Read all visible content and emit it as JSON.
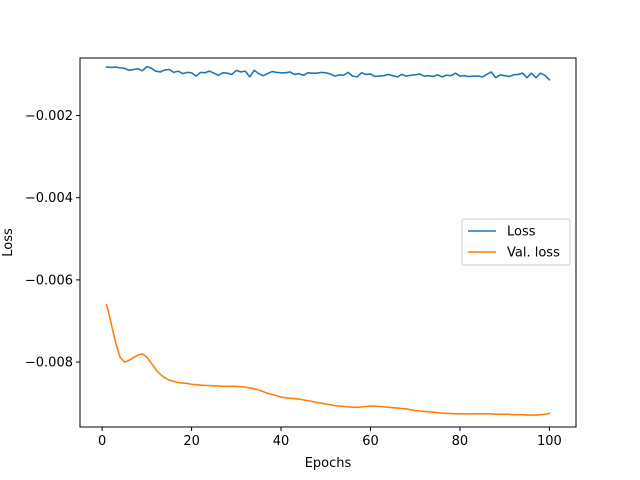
{
  "chart_data": {
    "type": "line",
    "title": "",
    "xlabel": "Epochs",
    "ylabel": "Loss",
    "xlim": [
      -4.95,
      105.95
    ],
    "ylim": [
      -0.00958,
      -0.0006
    ],
    "x_ticks": [
      0,
      20,
      40,
      60,
      80,
      100
    ],
    "x_tick_labels": [
      "0",
      "20",
      "40",
      "60",
      "80",
      "100"
    ],
    "y_ticks": [
      -0.008,
      -0.006,
      -0.004,
      -0.002
    ],
    "y_tick_labels": [
      "−0.008",
      "−0.006",
      "−0.004",
      "−0.002"
    ],
    "grid": false,
    "legend": "center-right",
    "x": [
      1,
      2,
      3,
      4,
      5,
      6,
      7,
      8,
      9,
      10,
      11,
      12,
      13,
      14,
      15,
      16,
      17,
      18,
      19,
      20,
      21,
      22,
      23,
      24,
      25,
      26,
      27,
      28,
      29,
      30,
      31,
      32,
      33,
      34,
      35,
      36,
      37,
      38,
      39,
      40,
      41,
      42,
      43,
      44,
      45,
      46,
      47,
      48,
      49,
      50,
      51,
      52,
      53,
      54,
      55,
      56,
      57,
      58,
      59,
      60,
      61,
      62,
      63,
      64,
      65,
      66,
      67,
      68,
      69,
      70,
      71,
      72,
      73,
      74,
      75,
      76,
      77,
      78,
      79,
      80,
      81,
      82,
      83,
      84,
      85,
      86,
      87,
      88,
      89,
      90,
      91,
      92,
      93,
      94,
      95,
      96,
      97,
      98,
      99,
      100
    ],
    "series": [
      {
        "name": "Loss",
        "color": "#1f77b4",
        "values": [
          -0.00082,
          -0.00083,
          -0.00082,
          -0.00084,
          -0.00085,
          -0.0009,
          -0.00088,
          -0.00086,
          -0.00091,
          -0.00081,
          -0.00085,
          -0.00092,
          -0.00094,
          -0.00089,
          -0.00088,
          -0.00095,
          -0.00092,
          -0.00098,
          -0.00095,
          -0.00096,
          -0.00104,
          -0.00095,
          -0.00096,
          -0.00092,
          -0.00097,
          -0.00102,
          -0.00096,
          -0.00097,
          -0.001,
          -0.0009,
          -0.00094,
          -0.00092,
          -0.00106,
          -0.0009,
          -0.00098,
          -0.00103,
          -0.00098,
          -0.00093,
          -0.00095,
          -0.00096,
          -0.00096,
          -0.00094,
          -0.001,
          -0.00098,
          -0.00102,
          -0.00096,
          -0.00097,
          -0.00097,
          -0.00095,
          -0.00096,
          -0.00099,
          -0.00104,
          -0.00101,
          -0.00102,
          -0.00095,
          -0.00104,
          -0.00106,
          -0.00096,
          -0.001,
          -0.00099,
          -0.00105,
          -0.00104,
          -0.00103,
          -0.001,
          -0.00103,
          -0.00106,
          -0.001,
          -0.00104,
          -0.00102,
          -0.00101,
          -0.00099,
          -0.00104,
          -0.00103,
          -0.00105,
          -0.00101,
          -0.00106,
          -0.00102,
          -0.00103,
          -0.00097,
          -0.00104,
          -0.00103,
          -0.00105,
          -0.00104,
          -0.00104,
          -0.00106,
          -0.001,
          -0.00094,
          -0.00108,
          -0.00101,
          -0.00103,
          -0.00105,
          -0.00101,
          -0.001,
          -0.00097,
          -0.00108,
          -0.00097,
          -0.00108,
          -0.00097,
          -0.00102,
          -0.00113
        ]
      },
      {
        "name": "Val. loss",
        "color": "#ff7f0e",
        "values": [
          -0.0066,
          -0.00705,
          -0.00752,
          -0.00788,
          -0.008,
          -0.00796,
          -0.00789,
          -0.00783,
          -0.0078,
          -0.00788,
          -0.00803,
          -0.00818,
          -0.0083,
          -0.00838,
          -0.00844,
          -0.00847,
          -0.0085,
          -0.00851,
          -0.00852,
          -0.00854,
          -0.00855,
          -0.00856,
          -0.00857,
          -0.00857,
          -0.00858,
          -0.00858,
          -0.00859,
          -0.00859,
          -0.00859,
          -0.00859,
          -0.0086,
          -0.00861,
          -0.00863,
          -0.00865,
          -0.00868,
          -0.00872,
          -0.00876,
          -0.00879,
          -0.00882,
          -0.00885,
          -0.00887,
          -0.00888,
          -0.00889,
          -0.0089,
          -0.00892,
          -0.00894,
          -0.00896,
          -0.00898,
          -0.009,
          -0.00902,
          -0.00904,
          -0.00906,
          -0.00907,
          -0.00908,
          -0.00909,
          -0.0091,
          -0.0091,
          -0.00909,
          -0.00908,
          -0.00907,
          -0.00907,
          -0.00908,
          -0.00909,
          -0.0091,
          -0.00911,
          -0.00912,
          -0.00913,
          -0.00914,
          -0.00916,
          -0.00918,
          -0.00919,
          -0.0092,
          -0.00921,
          -0.00922,
          -0.00923,
          -0.00924,
          -0.00925,
          -0.00925,
          -0.00926,
          -0.00926,
          -0.00926,
          -0.00926,
          -0.00926,
          -0.00926,
          -0.00926,
          -0.00926,
          -0.00926,
          -0.00927,
          -0.00927,
          -0.00927,
          -0.00927,
          -0.00928,
          -0.00928,
          -0.00928,
          -0.00929,
          -0.00929,
          -0.00929,
          -0.00928,
          -0.00927,
          -0.00925
        ]
      }
    ]
  }
}
